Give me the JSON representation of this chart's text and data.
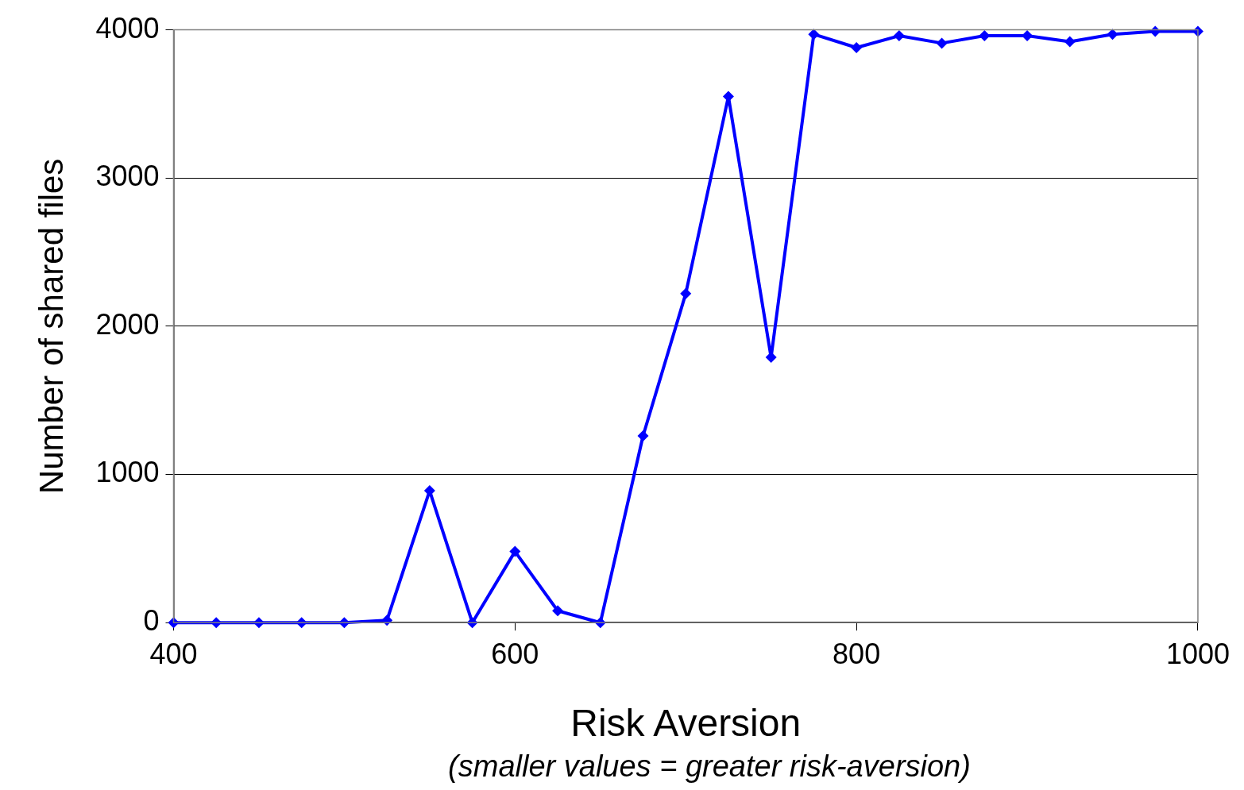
{
  "chart_data": {
    "type": "line",
    "xlabel": "Risk Aversion",
    "ylabel": "Number of shared files",
    "annotations": [
      "(smaller values = greater risk-aversion)"
    ],
    "x": [
      400,
      425,
      450,
      475,
      500,
      525,
      550,
      575,
      600,
      625,
      650,
      675,
      700,
      725,
      750,
      775,
      800,
      825,
      850,
      875,
      900,
      925,
      950,
      975,
      1000
    ],
    "series": [
      {
        "color": "#0000ff",
        "values": [
          0,
          0,
          0,
          0,
          0,
          16,
          890,
          0,
          480,
          80,
          0,
          1260,
          2220,
          3550,
          1790,
          3970,
          3880,
          3960,
          3910,
          3960,
          3960,
          3920,
          3970,
          3990,
          3990
        ]
      }
    ],
    "xlim": [
      400,
      1000
    ],
    "xticks": [
      400,
      600,
      800,
      1000
    ],
    "ylim": [
      0,
      4000
    ],
    "yticks": [
      0,
      1000,
      2000,
      3000,
      4000
    ],
    "grid": "y",
    "legend": false,
    "marker": "diamond",
    "line_style": "solid"
  }
}
